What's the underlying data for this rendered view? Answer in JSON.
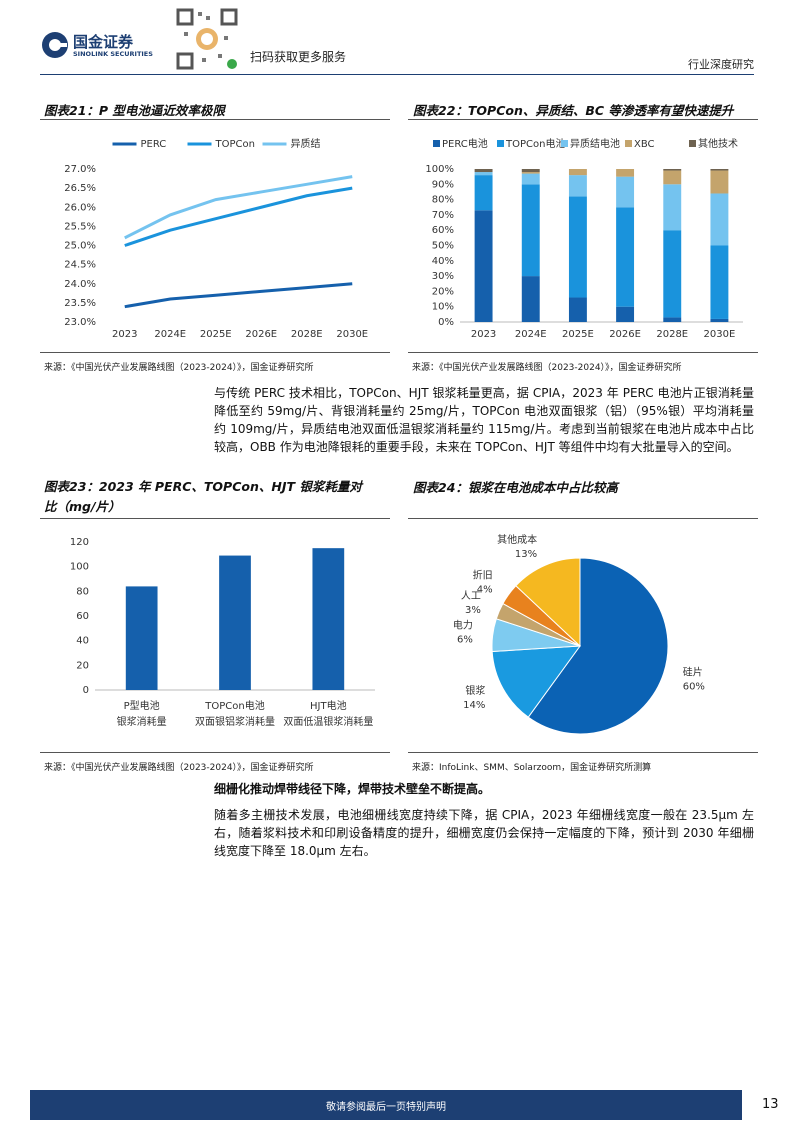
{
  "header": {
    "logo_cn": "国金证券",
    "logo_en": "SINOLINK SECURITIES",
    "qr_caption": "扫码获取更多服务",
    "report_type": "行业深度研究"
  },
  "chart_data": [
    {
      "type": "line",
      "title": "图表21：P 型电池逼近效率极限",
      "categories": [
        "2023",
        "2024E",
        "2025E",
        "2026E",
        "2028E",
        "2030E"
      ],
      "series": [
        {
          "name": "PERC",
          "color": "#1560ac",
          "values": [
            23.4,
            23.6,
            23.7,
            23.8,
            23.9,
            24.0
          ]
        },
        {
          "name": "TOPCon",
          "color": "#1a93dc",
          "values": [
            25.0,
            25.4,
            25.7,
            26.0,
            26.3,
            26.5
          ]
        },
        {
          "name": "异质结",
          "color": "#74c3ef",
          "values": [
            25.2,
            25.8,
            26.2,
            26.4,
            26.6,
            26.8
          ]
        }
      ],
      "ylim": [
        23,
        27
      ],
      "yticks": [
        {
          "value": 23,
          "label": "23.0%"
        },
        {
          "value": 23.5,
          "label": "23.5%"
        },
        {
          "value": 24,
          "label": "24.0%"
        },
        {
          "value": 24.5,
          "label": "24.5%"
        },
        {
          "value": 25,
          "label": "25.0%"
        },
        {
          "value": 25.5,
          "label": "25.5%"
        },
        {
          "value": 26,
          "label": "26.0%"
        },
        {
          "value": 26.5,
          "label": "26.5%"
        },
        {
          "value": 27,
          "label": "27.0%"
        }
      ],
      "grid": false
    },
    {
      "type": "bar",
      "stacked": true,
      "title": "图表22：TOPCon、异质结、BC 等渗透率有望快速提升",
      "categories": [
        "2023",
        "2024E",
        "2025E",
        "2026E",
        "2028E",
        "2030E"
      ],
      "series": [
        {
          "name": "PERC电池",
          "color": "#1560ac",
          "values": [
            73,
            30,
            16,
            10,
            3,
            2
          ]
        },
        {
          "name": "TOPCon电池",
          "color": "#1a93dc",
          "values": [
            23,
            60,
            66,
            65,
            57,
            48
          ]
        },
        {
          "name": "异质结电池",
          "color": "#74c3ef",
          "values": [
            2,
            7,
            14,
            20,
            30,
            34
          ]
        },
        {
          "name": "XBC",
          "color": "#c4a46c",
          "values": [
            0,
            1,
            4,
            5,
            9,
            15
          ]
        },
        {
          "name": "其他技术",
          "color": "#6e6250",
          "values": [
            2,
            2,
            0,
            0,
            1,
            1
          ]
        }
      ],
      "ylim": [
        0,
        100
      ],
      "yticks": [
        {
          "value": 0,
          "label": "0%"
        },
        {
          "value": 10,
          "label": "10%"
        },
        {
          "value": 20,
          "label": "20%"
        },
        {
          "value": 30,
          "label": "30%"
        },
        {
          "value": 40,
          "label": "40%"
        },
        {
          "value": 50,
          "label": "50%"
        },
        {
          "value": 60,
          "label": "60%"
        },
        {
          "value": 70,
          "label": "70%"
        },
        {
          "value": 80,
          "label": "80%"
        },
        {
          "value": 90,
          "label": "90%"
        },
        {
          "value": 100,
          "label": "100%"
        }
      ],
      "grid": false
    },
    {
      "type": "bar",
      "title": "图表23：2023 年 PERC、TOPCon、HJT 银浆耗量对比（mg/片）",
      "categories": [
        [
          "P型电池",
          "银浆消耗量"
        ],
        [
          "TOPCon电池",
          "双面银铝浆消耗量"
        ],
        [
          "HJT电池",
          "双面低温银浆消耗量"
        ]
      ],
      "values": [
        84,
        109,
        115
      ],
      "color": "#1560ac",
      "ylim": [
        0,
        120
      ],
      "yticks": [
        0,
        20,
        40,
        60,
        80,
        100,
        120
      ],
      "grid": false
    },
    {
      "type": "pie",
      "title": "图表24：银浆在电池成本中占比较高",
      "categories": [
        "硅片",
        "银浆",
        "电力",
        "人工",
        "折旧",
        "其他成本"
      ],
      "values": [
        60,
        14,
        6,
        3,
        4,
        13
      ],
      "value_labels": [
        "60%",
        "14%",
        "6%",
        "3%",
        "4%",
        "13%"
      ],
      "colors": [
        "#0b62b4",
        "#1a9ae0",
        "#7ecbf0",
        "#c4a46c",
        "#e8821e",
        "#f5b820"
      ]
    }
  ],
  "sources": [
    "来源：《中国光伏产业发展路线图（2023-2024）》，国金证券研究所",
    "来源：《中国光伏产业发展路线图（2023-2024）》，国金证券研究所",
    "来源：《中国光伏产业发展路线图（2023-2024）》，国金证券研究所",
    "来源：InfoLink、SMM、Solarzoom，国金证券研究所测算"
  ],
  "body": {
    "paragraph_1": "与传统 PERC 技术相比，TOPCon、HJT 银浆耗量更高，据 CPIA，2023 年 PERC 电池片正银消耗量降低至约 59mg/片、背银消耗量约 25mg/片，TOPCon 电池双面银浆（铝）（95%银）平均消耗量约 109mg/片，异质结电池双面低温银浆消耗量约 115mg/片。考虑到当前银浆在电池片成本中占比较高，OBB 作为电池降银耗的重要手段，未来在 TOPCon、HJT 等组件中均有大批量导入的空间。",
    "heading": "细栅化推动焊带线径下降，焊带技术壁垒不断提高。",
    "paragraph_2": "随着多主栅技术发展，电池细栅线宽度持续下降，据 CPIA，2023 年细栅线宽度一般在 23.5μm 左右，随着浆料技术和印刷设备精度的提升，细栅宽度仍会保持一定幅度的下降，预计到 2030 年细栅线宽度下降至 18.0μm 左右。"
  },
  "footer": {
    "disclaimer": "敬请参阅最后一页特别声明",
    "page_number": 13
  }
}
